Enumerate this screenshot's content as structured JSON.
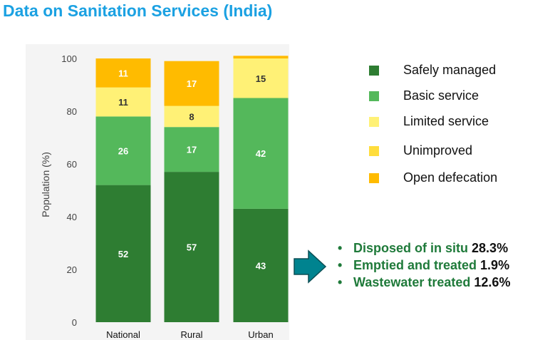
{
  "title": "Data on Sanitation Services (India)",
  "chart_data": {
    "type": "bar",
    "stacked": true,
    "categories": [
      "National",
      "Rural",
      "Urban"
    ],
    "ylabel": "Population (%)",
    "xlabel": "",
    "ylim": [
      0,
      100
    ],
    "yticks": [
      "0",
      "20",
      "40",
      "60",
      "80",
      "100"
    ],
    "series": [
      {
        "name": "Safely managed",
        "color": "#2e7d32",
        "values": [
          52,
          57,
          43
        ],
        "labels": [
          "52",
          "57",
          "43"
        ]
      },
      {
        "name": "Basic service",
        "color": "#54b85b",
        "values": [
          26,
          17,
          42
        ],
        "labels": [
          "26",
          "17",
          "42"
        ]
      },
      {
        "name": "Limited service",
        "color": "#fff176",
        "values": [
          11,
          8,
          15
        ],
        "labels": [
          "11",
          "8",
          "15"
        ]
      },
      {
        "name": "Unimproved",
        "color": "#ffdd3c",
        "values": [
          0,
          0,
          0
        ],
        "labels": [
          "",
          "",
          ""
        ]
      },
      {
        "name": "Open defecation",
        "color": "#ffbb00",
        "values": [
          11,
          17,
          1
        ],
        "labels": [
          "11",
          "17",
          ""
        ]
      }
    ],
    "grid": false,
    "legend_position": "right"
  },
  "urban_notes": [
    {
      "bullet": "•",
      "label": "Disposed of in situ",
      "value": "28.3%"
    },
    {
      "bullet": "•",
      "label": "Emptied and treated",
      "value": "1.9%"
    },
    {
      "bullet": "•",
      "label": "Wastewater treated",
      "value": "12.6%"
    }
  ],
  "colors": {
    "title": "#1ba1e2",
    "arrow": "#00838f",
    "note_text": "#1f7a3a"
  }
}
